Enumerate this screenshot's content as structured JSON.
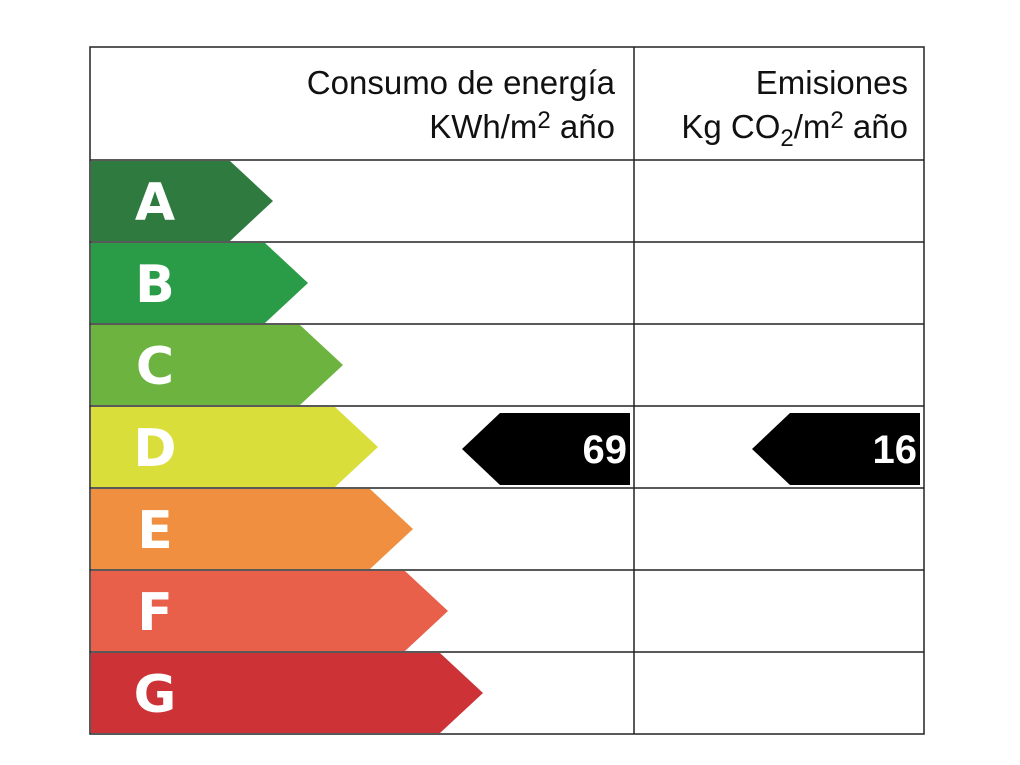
{
  "header": {
    "consumption": {
      "title": "Consumo de energía",
      "unit": [
        "KWh/m",
        "2",
        " año"
      ]
    },
    "emissions": {
      "title": "Emisiones",
      "unit": [
        "Kg CO",
        "2",
        "/m",
        "2",
        " año"
      ]
    }
  },
  "ratings": [
    {
      "letter": "A",
      "color": "#2e7a3f"
    },
    {
      "letter": "B",
      "color": "#2a9b46"
    },
    {
      "letter": "C",
      "color": "#6cb33f"
    },
    {
      "letter": "D",
      "color": "#d9de3a",
      "consumption": 69,
      "emissions": 16
    },
    {
      "letter": "E",
      "color": "#ef8f3f"
    },
    {
      "letter": "F",
      "color": "#e8604a"
    },
    {
      "letter": "G",
      "color": "#cc3236"
    }
  ]
}
